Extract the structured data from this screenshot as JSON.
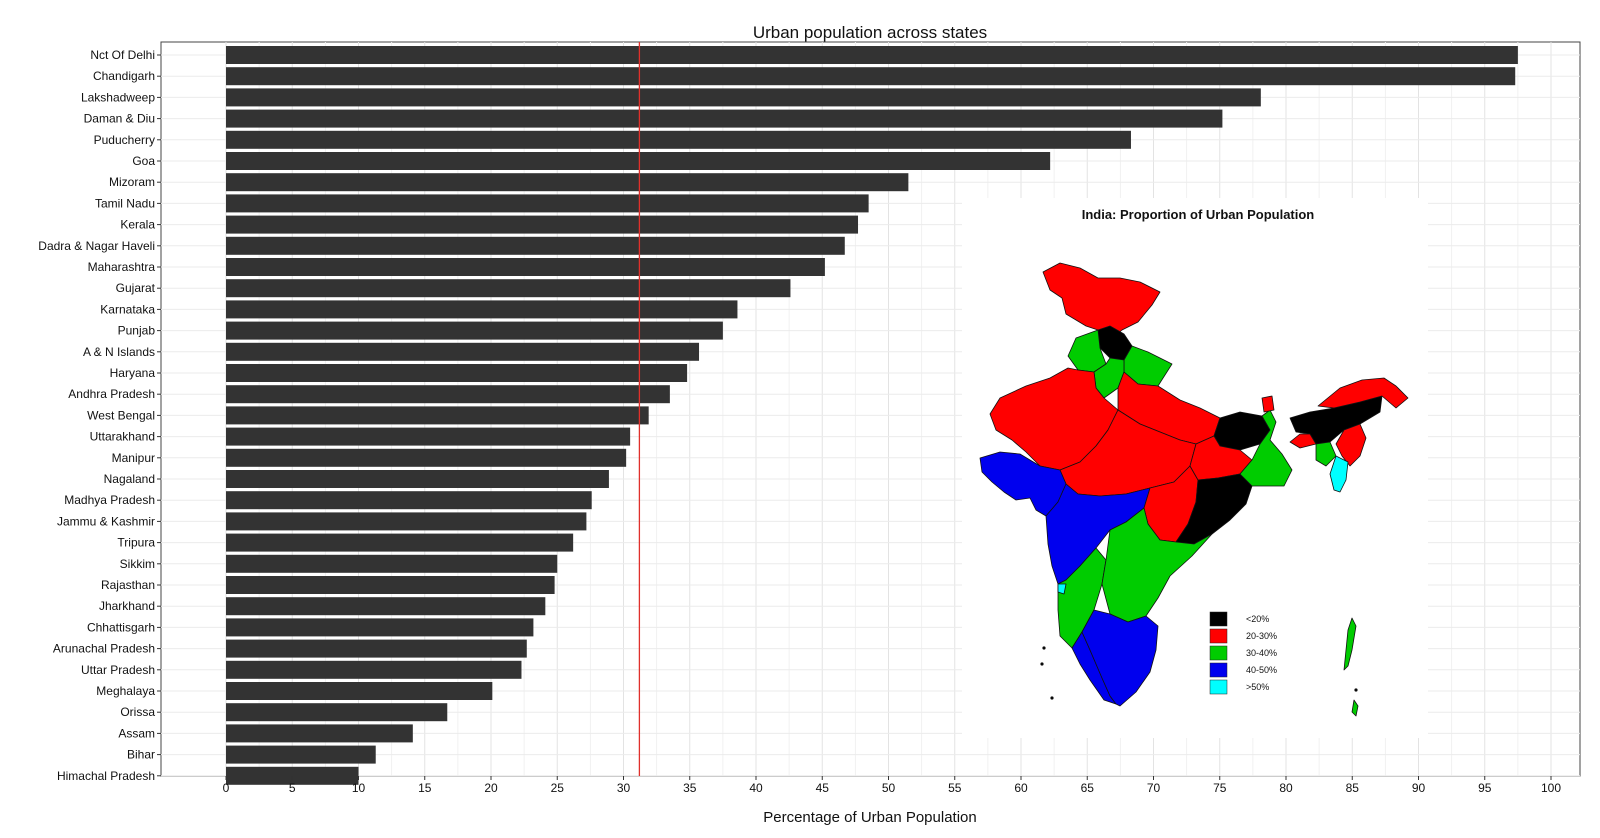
{
  "chart_data": [
    {
      "type": "bar",
      "orientation": "horizontal",
      "title": "Urban population across states",
      "xlabel": "Percentage of Urban Population",
      "ylabel": "",
      "xlim": [
        0,
        100
      ],
      "x_ticks": [
        0,
        5,
        10,
        15,
        20,
        25,
        30,
        35,
        40,
        45,
        50,
        55,
        60,
        65,
        70,
        75,
        80,
        85,
        90,
        95,
        100
      ],
      "grid": true,
      "bar_color": "#333333",
      "reference_line": {
        "value": 31.2,
        "color": "#e0302b"
      },
      "categories": [
        "Nct Of Delhi",
        "Chandigarh",
        "Lakshadweep",
        "Daman & Diu",
        "Puducherry",
        "Goa",
        "Mizoram",
        "Tamil Nadu",
        "Kerala",
        "Dadra & Nagar Haveli",
        "Maharashtra",
        "Gujarat",
        "Karnataka",
        "Punjab",
        "A & N Islands",
        "Haryana",
        "Andhra Pradesh",
        "West Bengal",
        "Uttarakhand",
        "Manipur",
        "Nagaland",
        "Madhya Pradesh",
        "Jammu & Kashmir",
        "Tripura",
        "Sikkim",
        "Rajasthan",
        "Jharkhand",
        "Chhattisgarh",
        "Arunachal Pradesh",
        "Uttar Pradesh",
        "Meghalaya",
        "Orissa",
        "Assam",
        "Bihar",
        "Himachal Pradesh"
      ],
      "values": [
        97.5,
        97.3,
        78.1,
        75.2,
        68.3,
        62.2,
        51.5,
        48.5,
        47.7,
        46.7,
        45.2,
        42.6,
        38.6,
        37.5,
        35.7,
        34.8,
        33.5,
        31.9,
        30.5,
        30.2,
        28.9,
        27.6,
        27.2,
        26.2,
        25.0,
        24.8,
        24.1,
        23.2,
        22.7,
        22.3,
        20.1,
        16.7,
        14.1,
        11.3,
        10.0
      ]
    },
    {
      "type": "map",
      "title": "India: Proportion of Urban Population",
      "legend": [
        {
          "label": "<20%",
          "color": "#000000"
        },
        {
          "label": "20-30%",
          "color": "#ff0000"
        },
        {
          "label": "30-40%",
          "color": "#00cc00"
        },
        {
          "label": "40-50%",
          "color": "#0000ee"
        },
        {
          "label": ">50%",
          "color": "#00ffff"
        }
      ]
    }
  ]
}
